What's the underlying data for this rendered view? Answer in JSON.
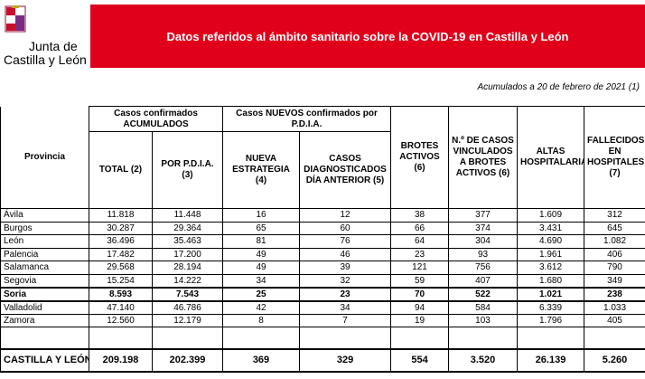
{
  "logo": {
    "line1": "Junta de",
    "line2": "Castilla y León"
  },
  "header": {
    "title": "Datos referidos al ámbito sanitario sobre la COVID-19 en Castilla y León",
    "subtitle": "Acumulados a 20 de febrero de 2021 (1)"
  },
  "table": {
    "groups": [
      "Casos confirmados ACUMULADOS",
      "Casos NUEVOS confirmados por P.D.I.A."
    ],
    "columns": [
      "Provincia",
      "TOTAL (2)",
      "POR P.D.I.A. (3)",
      "NUEVA ESTRATEGIA (4)",
      "CASOS DIAGNOSTICADOS DÍA ANTERIOR (5)",
      "BROTES ACTIVOS (6)",
      "N.º DE CASOS VINCULADOS A BROTES ACTIVOS (6)",
      "ALTAS HOSPITALARIAS",
      "FALLECIDOS EN HOSPITALES (7)"
    ],
    "rows": [
      [
        "Ávila",
        "11.818",
        "11.448",
        "16",
        "12",
        "38",
        "377",
        "1.609",
        "312"
      ],
      [
        "Burgos",
        "30.287",
        "29.364",
        "65",
        "60",
        "66",
        "374",
        "3.431",
        "645"
      ],
      [
        "León",
        "36.496",
        "35.463",
        "81",
        "76",
        "64",
        "304",
        "4.690",
        "1.082"
      ],
      [
        "Palencia",
        "17.482",
        "17.200",
        "49",
        "46",
        "23",
        "93",
        "1.961",
        "406"
      ],
      [
        "Salamanca",
        "29.568",
        "28.194",
        "49",
        "39",
        "121",
        "756",
        "3.612",
        "790"
      ],
      [
        "Segovia",
        "15.254",
        "14.222",
        "34",
        "32",
        "59",
        "407",
        "1.680",
        "349"
      ],
      [
        "Soria",
        "8.593",
        "7.543",
        "25",
        "23",
        "70",
        "522",
        "1.021",
        "238"
      ],
      [
        "Valladolid",
        "47.140",
        "46.786",
        "42",
        "34",
        "94",
        "584",
        "6.339",
        "1.033"
      ],
      [
        "Zamora",
        "12.560",
        "12.179",
        "8",
        "7",
        "19",
        "103",
        "1.796",
        "405"
      ]
    ],
    "total": [
      "CASTILLA Y LEÓN",
      "209.198",
      "202.399",
      "369",
      "329",
      "554",
      "3.520",
      "26.139",
      "5.260"
    ]
  }
}
